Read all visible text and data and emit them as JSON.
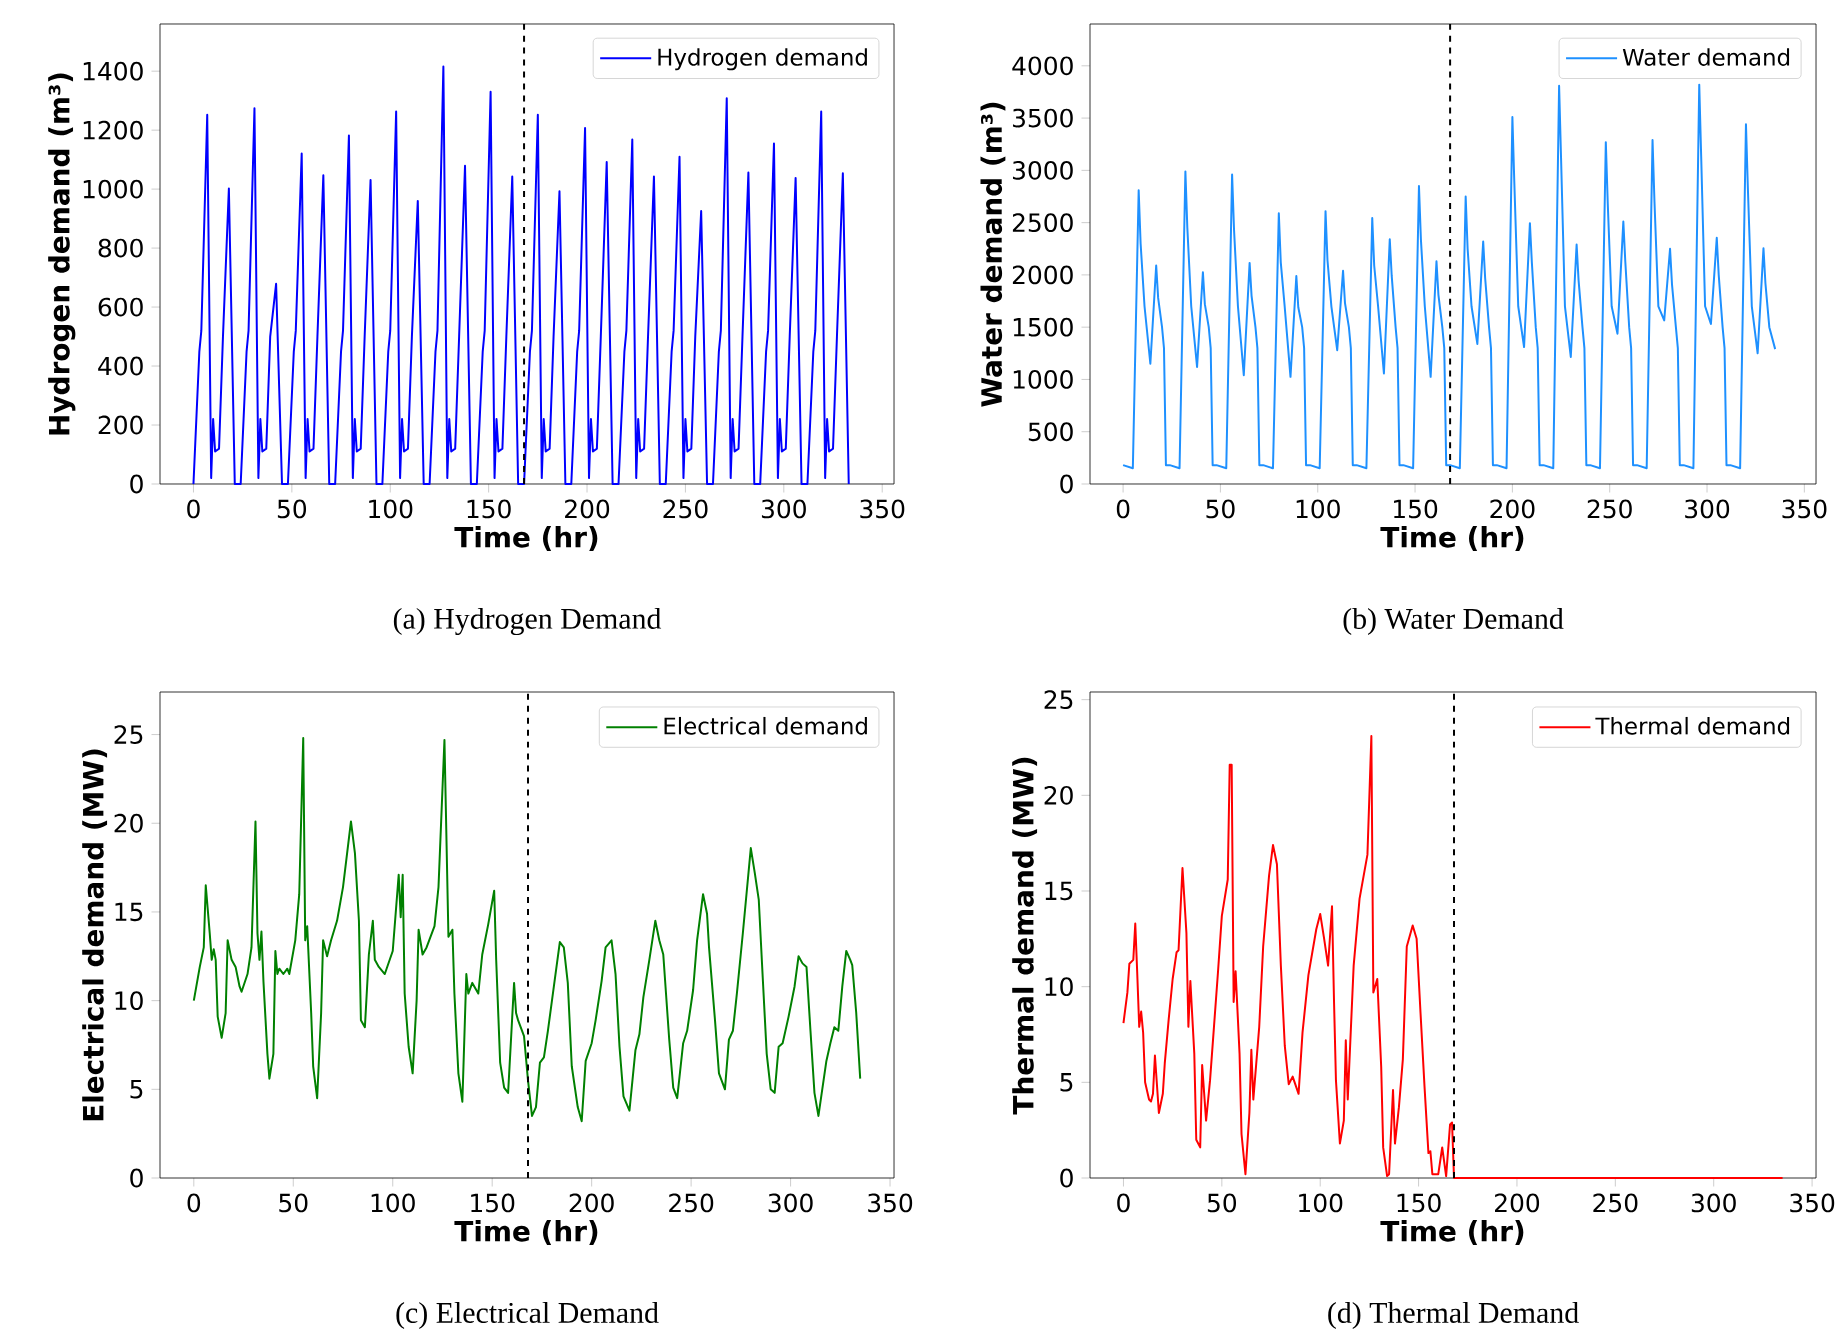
{
  "chart_data": [
    {
      "type": "line",
      "xlabel": "Time (hr)",
      "ylabel": "Hydrogen demand  (m³)",
      "annotations": [
        "(a) Hydrogen Demand"
      ],
      "xlim": [
        -17,
        356
      ],
      "ylim": [
        0,
        1560
      ],
      "xticks": [
        0,
        50,
        100,
        150,
        200,
        250,
        300,
        350
      ],
      "yticks": [
        0,
        200,
        400,
        600,
        800,
        1000,
        1200,
        1400
      ],
      "legend": "top right",
      "ref_lines": [
        {
          "axis": "x",
          "value": 168,
          "color": "#000000",
          "line_style": "dashed"
        }
      ],
      "x": [
        0,
        3,
        4,
        7,
        9,
        10,
        11,
        13,
        15,
        18,
        21,
        24,
        27,
        28,
        31,
        33,
        34,
        35,
        37,
        39,
        42,
        45,
        48,
        51,
        52,
        55,
        57,
        58,
        59,
        61,
        63,
        66,
        69,
        72,
        75,
        76,
        79,
        81,
        82,
        83,
        85,
        87,
        90,
        93,
        96,
        99,
        100,
        103,
        105,
        106,
        107,
        109,
        111,
        114,
        117,
        120,
        123,
        124,
        127,
        129,
        130,
        131,
        133,
        135,
        138,
        141,
        144,
        147,
        148,
        151,
        153,
        154,
        155,
        157,
        159,
        162,
        165,
        168,
        171,
        172,
        175,
        177,
        178,
        179,
        181,
        183,
        186,
        189,
        192,
        195,
        196,
        199,
        201,
        202,
        203,
        205,
        207,
        210,
        213,
        216,
        219,
        220,
        223,
        225,
        226,
        227,
        229,
        231,
        234,
        237,
        240,
        243,
        244,
        247,
        249,
        250,
        251,
        253,
        255,
        258,
        261,
        264,
        267,
        268,
        271,
        273,
        274,
        275,
        277,
        279,
        282,
        285,
        288,
        291,
        292,
        295,
        297,
        298,
        299,
        301,
        303,
        306,
        309,
        312,
        315,
        316,
        319,
        321,
        322,
        323,
        325,
        327,
        330,
        333
      ],
      "series": [
        {
          "name": "Hydrogen demand",
          "color": "#0000ff",
          "values": [
            0,
            450,
            520,
            1252,
            20,
            220,
            110,
            120,
            500,
            1002,
            0,
            0,
            450,
            520,
            1274,
            20,
            220,
            110,
            120,
            500,
            679,
            0,
            0,
            450,
            520,
            1121,
            20,
            220,
            110,
            120,
            500,
            1047,
            0,
            0,
            450,
            520,
            1182,
            20,
            220,
            110,
            120,
            500,
            1031,
            0,
            0,
            450,
            520,
            1263,
            20,
            220,
            110,
            120,
            500,
            960,
            0,
            0,
            450,
            520,
            1416,
            20,
            220,
            110,
            120,
            500,
            1079,
            0,
            0,
            450,
            520,
            1330,
            20,
            220,
            110,
            120,
            500,
            1043,
            0,
            0,
            450,
            520,
            1252,
            20,
            220,
            110,
            120,
            500,
            993,
            0,
            0,
            450,
            520,
            1207,
            20,
            220,
            110,
            120,
            500,
            1092,
            0,
            0,
            450,
            520,
            1168,
            20,
            220,
            110,
            120,
            500,
            1043,
            0,
            0,
            450,
            520,
            1110,
            20,
            220,
            110,
            120,
            500,
            926,
            0,
            0,
            450,
            520,
            1308,
            20,
            220,
            110,
            120,
            500,
            1056,
            0,
            0,
            450,
            520,
            1155,
            20,
            220,
            110,
            120,
            500,
            1038,
            0,
            0,
            450,
            520,
            1263,
            20,
            220,
            110,
            120,
            500,
            1054,
            0
          ]
        }
      ]
    },
    {
      "type": "line",
      "xlabel": "Time (hr)",
      "ylabel": "Water demand (m³)",
      "annotations": [
        "(b) Water Demand"
      ],
      "xlim": [
        -17,
        356
      ],
      "ylim": [
        0,
        4400
      ],
      "xticks": [
        0,
        50,
        100,
        150,
        200,
        250,
        300,
        350
      ],
      "yticks": [
        0,
        500,
        1000,
        1500,
        2000,
        2500,
        3000,
        3500,
        4000
      ],
      "legend": "top right",
      "ref_lines": [
        {
          "axis": "x",
          "value": 168,
          "color": "#000000",
          "line_style": "dashed"
        }
      ],
      "x": [
        0,
        5,
        8,
        9,
        11,
        14,
        17,
        18,
        20,
        21,
        22,
        24,
        29,
        32,
        33,
        35,
        38,
        41,
        42,
        44,
        45,
        46,
        48,
        53,
        56,
        57,
        59,
        62,
        65,
        66,
        68,
        69,
        70,
        72,
        77,
        80,
        81,
        83,
        86,
        89,
        90,
        92,
        93,
        94,
        96,
        101,
        104,
        105,
        107,
        110,
        113,
        114,
        116,
        117,
        118,
        120,
        125,
        128,
        129,
        131,
        134,
        137,
        138,
        140,
        141,
        142,
        144,
        149,
        152,
        153,
        155,
        158,
        161,
        162,
        164,
        165,
        166,
        168,
        173,
        176,
        177,
        179,
        182,
        185,
        186,
        188,
        189,
        190,
        192,
        197,
        200,
        201,
        203,
        206,
        209,
        210,
        212,
        213,
        214,
        216,
        221,
        224,
        225,
        227,
        230,
        233,
        234,
        236,
        237,
        238,
        240,
        245,
        248,
        249,
        251,
        254,
        257,
        258,
        260,
        261,
        262,
        264,
        269,
        272,
        273,
        275,
        278,
        281,
        282,
        284,
        285,
        286,
        288,
        293,
        296,
        297,
        299,
        302,
        305,
        306,
        308,
        309,
        310,
        312,
        317,
        320,
        321,
        323,
        326,
        329,
        330,
        332,
        335
      ],
      "series": [
        {
          "name": "Water demand",
          "color": "#1e90ff",
          "values": [
            180,
            150,
            2810,
            2300,
            1700,
            1150,
            2090,
            1780,
            1500,
            1300,
            180,
            180,
            150,
            2990,
            2450,
            1700,
            1120,
            2025,
            1720,
            1500,
            1300,
            180,
            180,
            150,
            2960,
            2430,
            1700,
            1040,
            2115,
            1800,
            1500,
            1300,
            180,
            180,
            150,
            2590,
            2120,
            1700,
            1025,
            1990,
            1690,
            1500,
            1300,
            180,
            180,
            150,
            2610,
            2140,
            1700,
            1280,
            2040,
            1730,
            1500,
            1300,
            180,
            180,
            150,
            2545,
            2090,
            1700,
            1057,
            2340,
            1990,
            1500,
            1300,
            180,
            180,
            150,
            2850,
            2340,
            1700,
            1025,
            2130,
            1810,
            1500,
            1300,
            180,
            180,
            150,
            2750,
            2250,
            1700,
            1340,
            2320,
            1970,
            1500,
            1300,
            180,
            180,
            150,
            3510,
            2880,
            1700,
            1310,
            2495,
            2120,
            1500,
            1300,
            180,
            180,
            150,
            3810,
            3120,
            1700,
            1215,
            2290,
            1950,
            1500,
            1300,
            180,
            180,
            150,
            3270,
            2680,
            1700,
            1437,
            2510,
            2130,
            1500,
            1300,
            180,
            180,
            150,
            3290,
            2700,
            1700,
            1565,
            2250,
            1910,
            1500,
            1300,
            180,
            180,
            150,
            3820,
            3130,
            1700,
            1530,
            2355,
            2000,
            1500,
            1300,
            180,
            180,
            150,
            3440,
            2820,
            1700,
            1250,
            2255,
            1920,
            1500,
            1290
          ]
        }
      ]
    },
    {
      "type": "line",
      "xlabel": "Time (hr)",
      "ylabel": "Electrical demand (MW)",
      "annotations": [
        "(c) Electrical Demand"
      ],
      "xlim": [
        -17,
        352
      ],
      "ylim": [
        0,
        27.4
      ],
      "xticks": [
        0,
        50,
        100,
        150,
        200,
        250,
        300,
        350
      ],
      "yticks": [
        0,
        5,
        10,
        15,
        20,
        25
      ],
      "legend": "top right",
      "ref_lines": [
        {
          "axis": "x",
          "value": 168,
          "color": "#000000",
          "line_style": "dashed"
        }
      ],
      "x": [
        0,
        3,
        5,
        6,
        8,
        9,
        10,
        11,
        12,
        14,
        16,
        17,
        19,
        21,
        23,
        24,
        27,
        29,
        31,
        32,
        33,
        34,
        35,
        37,
        38,
        40,
        41,
        42,
        43,
        45,
        47,
        48,
        51,
        53,
        55,
        56,
        57,
        59,
        60,
        62,
        64,
        65,
        67,
        69,
        72,
        75,
        79,
        81,
        83,
        84,
        86,
        88,
        90,
        91,
        93,
        96,
        100,
        103,
        104,
        105,
        106,
        108,
        110,
        112,
        113,
        115,
        117,
        121,
        123,
        126,
        128,
        130,
        131,
        133,
        135,
        137,
        138,
        140,
        143,
        145,
        148,
        151,
        152,
        154,
        156,
        158,
        161,
        162,
        163,
        166,
        168,
        170,
        172,
        174,
        176,
        178,
        181,
        184,
        186,
        188,
        190,
        193,
        195,
        197,
        200,
        202,
        205,
        207,
        210,
        212,
        214,
        216,
        219,
        222,
        224,
        226,
        229,
        232,
        234,
        236,
        239,
        241,
        243,
        246,
        248,
        251,
        253,
        256,
        258,
        259,
        262,
        264,
        267,
        269,
        271,
        273,
        276,
        280,
        282,
        284,
        286,
        288,
        290,
        292,
        294,
        296,
        299,
        302,
        304,
        306,
        308,
        310,
        312,
        314,
        318,
        320,
        322,
        324,
        326,
        328,
        330,
        331,
        333,
        335
      ],
      "series": [
        {
          "name": "Electrical demand",
          "color": "#008000",
          "values": [
            10.0,
            11.9,
            13.0,
            16.5,
            13.8,
            12.3,
            12.9,
            12.3,
            9.1,
            7.9,
            9.3,
            13.4,
            12.3,
            11.9,
            10.8,
            10.5,
            11.5,
            13.0,
            20.1,
            13.8,
            12.3,
            13.9,
            11.1,
            7.0,
            5.6,
            7.0,
            12.8,
            11.5,
            11.8,
            11.5,
            11.8,
            11.5,
            13.4,
            16.0,
            24.8,
            13.4,
            14.2,
            9.3,
            6.3,
            4.5,
            9.3,
            13.4,
            12.5,
            13.4,
            14.5,
            16.4,
            20.1,
            18.3,
            14.5,
            8.9,
            8.5,
            12.6,
            14.5,
            12.3,
            11.9,
            11.5,
            12.8,
            17.1,
            14.7,
            17.1,
            10.4,
            7.4,
            5.9,
            10.0,
            14.0,
            12.6,
            13.0,
            14.2,
            16.4,
            24.7,
            13.6,
            14.0,
            10.4,
            5.9,
            4.3,
            11.5,
            10.4,
            11.0,
            10.4,
            12.6,
            14.3,
            16.2,
            12.3,
            6.5,
            5.1,
            4.8,
            11.0,
            9.3,
            8.9,
            8.0,
            5.5,
            3.5,
            4.0,
            6.5,
            6.8,
            8.3,
            10.8,
            13.3,
            13.0,
            11.0,
            6.3,
            4.0,
            3.2,
            6.6,
            7.6,
            8.9,
            11.1,
            13.0,
            13.4,
            11.5,
            7.4,
            4.6,
            3.8,
            7.2,
            8.1,
            10.2,
            12.3,
            14.5,
            13.4,
            12.6,
            7.8,
            5.1,
            4.5,
            7.6,
            8.3,
            10.6,
            13.4,
            16.0,
            14.9,
            13.0,
            8.9,
            5.9,
            5.0,
            7.8,
            8.3,
            10.4,
            13.8,
            18.6,
            17.2,
            15.7,
            11.3,
            7.0,
            5.0,
            4.8,
            7.4,
            7.6,
            9.1,
            10.8,
            12.5,
            12.1,
            11.9,
            8.3,
            4.8,
            3.5,
            6.6,
            7.6,
            8.5,
            8.3,
            10.8,
            12.8,
            12.3,
            12.0,
            9.3,
            5.6
          ]
        }
      ]
    },
    {
      "type": "line",
      "xlabel": "Time (hr)",
      "ylabel": "Thermal demand (MW)",
      "annotations": [
        "(d) Thermal Demand"
      ],
      "xlim": [
        -17,
        352
      ],
      "ylim": [
        0,
        25.4
      ],
      "xticks": [
        0,
        50,
        100,
        150,
        200,
        250,
        300,
        350
      ],
      "yticks": [
        0,
        5,
        10,
        15,
        20,
        25
      ],
      "legend": "top right",
      "ref_lines": [
        {
          "axis": "x",
          "value": 168,
          "color": "#000000",
          "line_style": "dashed"
        }
      ],
      "x": [
        0,
        2,
        3,
        5,
        6,
        7,
        8,
        9,
        10,
        11,
        13,
        14,
        15,
        16,
        18,
        20,
        21,
        23,
        25,
        27,
        28,
        30,
        32,
        33,
        34,
        36,
        37,
        39,
        40,
        42,
        44,
        46,
        48,
        50,
        53,
        54,
        55,
        56,
        57,
        59,
        60,
        62,
        64,
        65,
        66,
        69,
        71,
        74,
        76,
        78,
        80,
        82,
        84,
        86,
        89,
        91,
        94,
        98,
        100,
        102,
        104,
        106,
        107,
        108,
        110,
        112,
        113,
        114,
        117,
        120,
        124,
        126,
        127,
        129,
        131,
        132,
        134,
        135,
        137,
        138,
        140,
        142,
        144,
        147,
        149,
        151,
        153,
        155,
        156,
        157,
        160,
        162,
        164,
        166,
        167,
        168,
        250,
        335
      ],
      "series": [
        {
          "name": "Thermal demand",
          "color": "#ff0000",
          "values": [
            8.1,
            9.7,
            11.2,
            11.4,
            13.3,
            10.7,
            7.9,
            8.7,
            7.6,
            5.0,
            4.1,
            4.0,
            4.4,
            6.4,
            3.4,
            4.4,
            6.0,
            8.3,
            10.4,
            11.8,
            11.9,
            16.2,
            12.8,
            7.9,
            10.3,
            6.5,
            2.0,
            1.6,
            5.9,
            3.0,
            5.1,
            7.9,
            10.7,
            13.7,
            15.6,
            21.6,
            21.6,
            9.2,
            10.8,
            6.5,
            2.3,
            0.2,
            3.4,
            6.7,
            4.1,
            7.9,
            12.1,
            15.8,
            17.4,
            16.4,
            11.1,
            6.9,
            4.9,
            5.3,
            4.4,
            7.6,
            10.6,
            13.0,
            13.8,
            12.5,
            11.1,
            14.2,
            9.3,
            5.1,
            1.8,
            3.0,
            7.2,
            4.1,
            11.1,
            14.6,
            16.9,
            23.1,
            9.7,
            10.4,
            5.8,
            1.6,
            0.1,
            0.2,
            4.6,
            1.8,
            3.7,
            6.2,
            12.1,
            13.2,
            12.5,
            8.6,
            4.8,
            1.3,
            1.4,
            0.2,
            0.2,
            1.6,
            0.1,
            2.8,
            2.9,
            0.0,
            0.0,
            0.0
          ]
        }
      ]
    }
  ]
}
